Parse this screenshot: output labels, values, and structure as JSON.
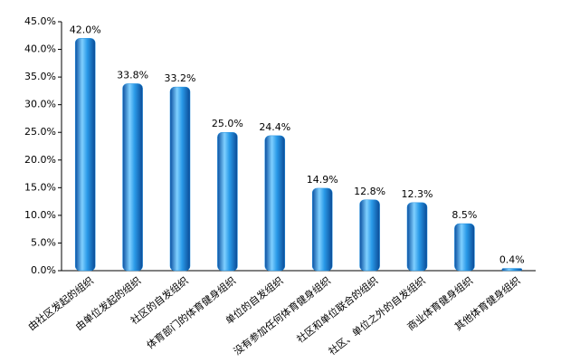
{
  "chart_data": {
    "type": "bar",
    "categories": [
      "由社区发起的组织",
      "由单位发起的组织",
      "社区的自发组织",
      "体育部门的体育健身组织",
      "单位的自发组织",
      "没有参加任何体育健身组织",
      "社区和单位联合的组织",
      "社区、单位之外的自发组织",
      "商业体育健身组织",
      "其他体育健身组织"
    ],
    "values": [
      42.0,
      33.8,
      33.2,
      25.0,
      24.4,
      14.9,
      12.8,
      12.3,
      8.5,
      0.4
    ],
    "value_labels": [
      "42.0%",
      "33.8%",
      "33.2%",
      "25.0%",
      "24.4%",
      "14.9%",
      "12.8%",
      "12.3%",
      "8.5%",
      "0.4%"
    ],
    "color": "#1e8fe0",
    "ylim": [
      0,
      45
    ],
    "yticks": [
      {
        "value": 0,
        "label": "0.0%"
      },
      {
        "value": 5,
        "label": "5.0%"
      },
      {
        "value": 10,
        "label": "10.0%"
      },
      {
        "value": 15,
        "label": "15.0%"
      },
      {
        "value": 20,
        "label": "20.0%"
      },
      {
        "value": 25,
        "label": "25.0%"
      },
      {
        "value": 30,
        "label": "30.0%"
      },
      {
        "value": 35,
        "label": "35.0%"
      },
      {
        "value": 40,
        "label": "40.0%"
      },
      {
        "value": 45,
        "label": "45.0%"
      }
    ],
    "grid": false
  }
}
